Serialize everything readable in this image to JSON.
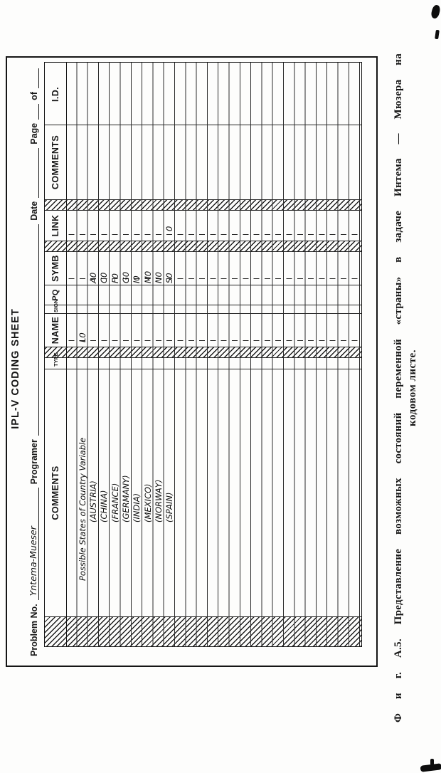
{
  "sheet": {
    "title": "IPL-V CODING SHEET",
    "fields": {
      "problem_label": "Problem No.",
      "problem_value": "Yntema-Mueser",
      "programer_label": "Programer",
      "date_label": "Date",
      "page_label": "Page",
      "of_label": "of"
    },
    "columns": {
      "comments_left": "COMMENTS",
      "type": "TYPE",
      "name": "NAME",
      "sign": "SIGN",
      "pq": "PQ",
      "symb": "SYMB",
      "link": "LINK",
      "comments_right": "COMMENTS",
      "id": "I.D."
    },
    "row_count": 27,
    "row_height": 15.3,
    "entries": [
      {
        "row": 2,
        "col": "comments_left",
        "text": "Possible States of Country Variable",
        "indent": 50
      },
      {
        "row": 2,
        "col": "name",
        "text": "L0",
        "indent": 6
      },
      {
        "row": 3,
        "col": "comments_left",
        "text": "(AUSTRIA)",
        "indent": 132
      },
      {
        "row": 3,
        "col": "symb",
        "text": "A0",
        "indent": 2
      },
      {
        "row": 4,
        "col": "comments_left",
        "text": "(CHINA)",
        "indent": 132
      },
      {
        "row": 4,
        "col": "symb",
        "text": "C0",
        "indent": 2
      },
      {
        "row": 5,
        "col": "comments_left",
        "text": "(FRANCE)",
        "indent": 132
      },
      {
        "row": 5,
        "col": "symb",
        "text": "F0",
        "indent": 2
      },
      {
        "row": 6,
        "col": "comments_left",
        "text": "(GERMANY)",
        "indent": 132
      },
      {
        "row": 6,
        "col": "symb",
        "text": "G0",
        "indent": 2
      },
      {
        "row": 7,
        "col": "comments_left",
        "text": "(INDIA)",
        "indent": 132
      },
      {
        "row": 7,
        "col": "symb",
        "text": "I0",
        "indent": 2
      },
      {
        "row": 8,
        "col": "comments_left",
        "text": "(MEXICO)",
        "indent": 132
      },
      {
        "row": 8,
        "col": "symb",
        "text": "M0",
        "indent": 2
      },
      {
        "row": 9,
        "col": "comments_left",
        "text": "(NORWAY)",
        "indent": 132
      },
      {
        "row": 9,
        "col": "symb",
        "text": "N0",
        "indent": 2
      },
      {
        "row": 10,
        "col": "comments_left",
        "text": "(SPAIN)",
        "indent": 132
      },
      {
        "row": 10,
        "col": "symb",
        "text": "S0",
        "indent": 2
      },
      {
        "row": 10,
        "col": "link",
        "text": "0",
        "indent": 13
      }
    ]
  },
  "caption": {
    "line1": "Ф и г. А.5. Представление возможных состояний переменной «страны» в задаче Интема — Мюзера на",
    "line2": "кодовом листе."
  }
}
